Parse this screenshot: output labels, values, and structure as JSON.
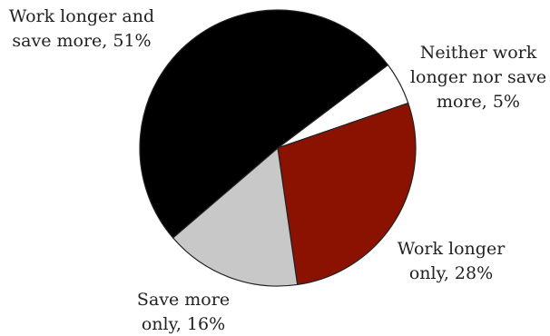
{
  "chart_data": {
    "type": "pie",
    "title": "",
    "slices": [
      {
        "label": "Work longer and save more",
        "value": 51,
        "color": "#000000",
        "label_lines": [
          "Work longer and",
          "save more, 51%"
        ]
      },
      {
        "label": "Neither work longer nor save more",
        "value": 5,
        "color": "#ffffff",
        "label_lines": [
          "Neither work",
          "longer nor save",
          "more, 5%"
        ]
      },
      {
        "label": "Work longer only",
        "value": 28,
        "color": "#8b1200",
        "label_lines": [
          "Work longer",
          "only, 28%"
        ]
      },
      {
        "label": "Save more only",
        "value": 16,
        "color": "#c8c8c8",
        "label_lines": [
          "Save more",
          "only, 16%"
        ]
      }
    ]
  }
}
